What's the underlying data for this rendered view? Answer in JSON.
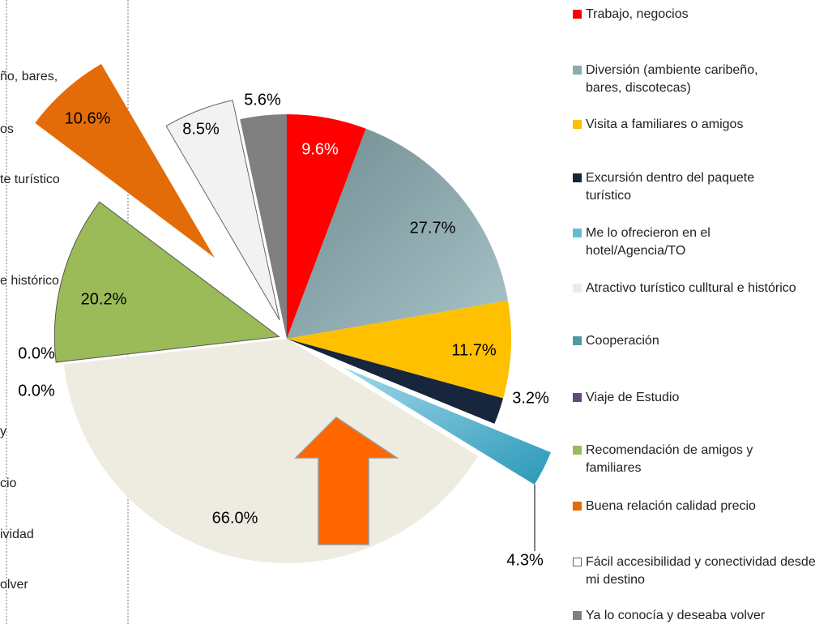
{
  "chart_data": {
    "type": "pie",
    "categories": [
      "Trabajo, negocios",
      "Diversión (ambiente caribeño, bares, discotecas)",
      "Visita a familiares o amigos",
      "Excursión dentro del paquete turístico",
      "Me lo ofrecieron en el hotel/Agencia/TO",
      "Atractivo turístico culltural e histórico",
      "Cooperación",
      "Viaje de Estudio",
      "Recomendación de amigos y familiares",
      "Buena relación calidad precio",
      "Fácil accesibilidad y conectividad desde mi destino",
      "Ya lo conocía y deseaba volver"
    ],
    "values": [
      9.6,
      27.7,
      11.7,
      3.2,
      4.3,
      66.0,
      0.0,
      0.0,
      20.2,
      10.6,
      8.5,
      5.6
    ],
    "value_labels": [
      "9.6%",
      "27.7%",
      "11.7%",
      "3.2%",
      "4.3%",
      "66.0%",
      "0.0%",
      "0.0%",
      "20.2%",
      "10.6%",
      "8.5%",
      "5.6%"
    ],
    "colors": [
      "#ff0000",
      "#8daaae",
      "#ffc000",
      "#17253d",
      "#62bcd8",
      "#eeece1",
      "#4f9aa0",
      "#604a7b",
      "#9bbb59",
      "#e36c09",
      "#f2f2f2",
      "#808080"
    ]
  },
  "left_panel_fragments": [
    "ño, bares,",
    "os",
    "te turístico",
    "e histórico",
    "y",
    "cio",
    "ividad",
    "olver"
  ]
}
